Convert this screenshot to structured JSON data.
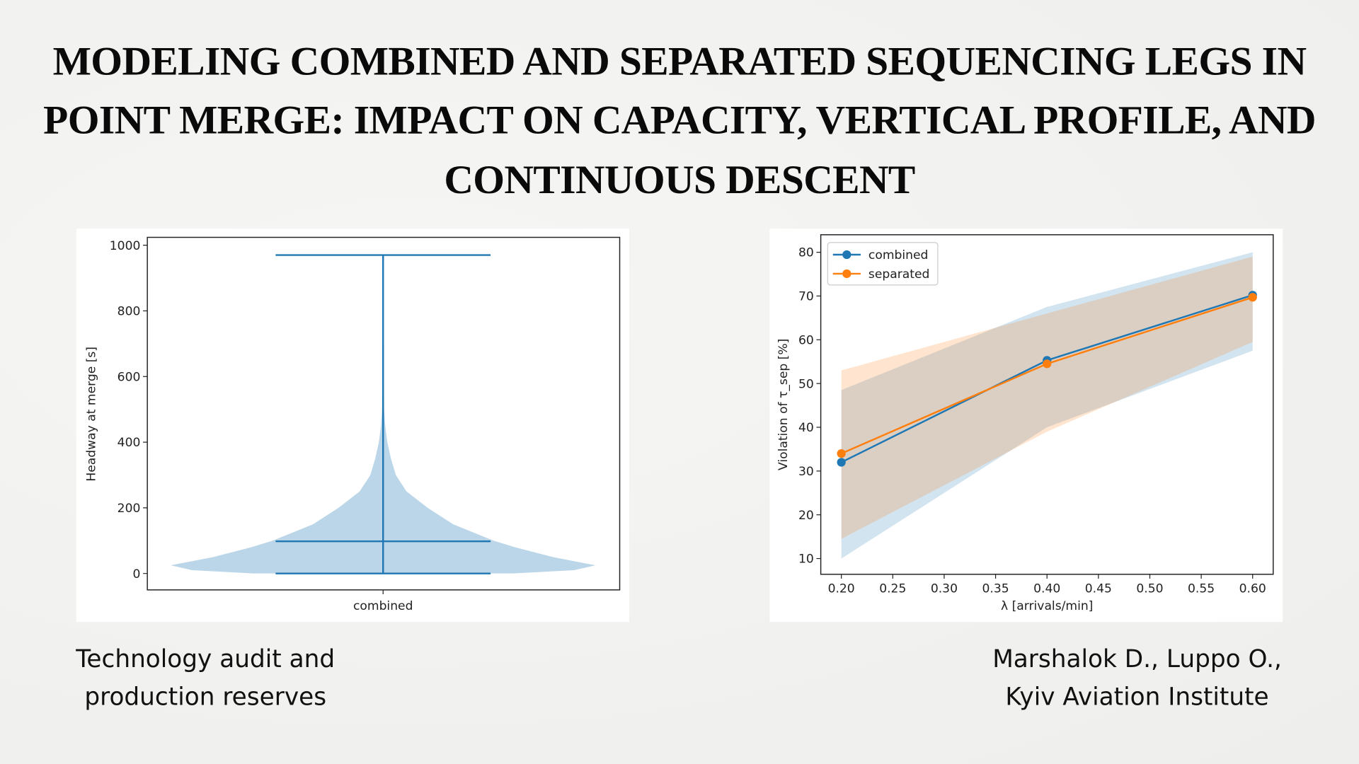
{
  "title_lines": [
    "MODELING COMBINED AND SEPARATED SEQUENCING LEGS IN",
    "POINT MERGE: IMPACT ON CAPACITY, VERTICAL PROFILE, AND",
    "CONTINUOUS DESCENT"
  ],
  "caption_left": [
    "Technology audit and",
    "production reserves"
  ],
  "caption_right": [
    "Marshalok D., Luppo O.,",
    "Kyiv Aviation Institute"
  ],
  "chart_data": [
    {
      "type": "violin",
      "categories": [
        "combined"
      ],
      "ylabel": "Headway at merge [s]",
      "xlabel": "",
      "ylim": [
        -50,
        1024
      ],
      "yticks": [
        0,
        200,
        400,
        600,
        800,
        1000
      ],
      "color": "#1f77b4",
      "min": 0,
      "max": 970,
      "center_line": 98,
      "density": [
        [
          0,
          0.61
        ],
        [
          10,
          0.9
        ],
        [
          25,
          1.0
        ],
        [
          50,
          0.8
        ],
        [
          80,
          0.62
        ],
        [
          100,
          0.52
        ],
        [
          150,
          0.33
        ],
        [
          200,
          0.21
        ],
        [
          250,
          0.11
        ],
        [
          300,
          0.06
        ],
        [
          350,
          0.037
        ],
        [
          400,
          0.02
        ],
        [
          450,
          0.01
        ],
        [
          500,
          0.005
        ],
        [
          970,
          0
        ]
      ]
    },
    {
      "type": "line",
      "xlabel": "λ [arrivals/min]",
      "ylabel": "Violation of τ_sep [%]",
      "xlim": [
        0.18,
        0.62
      ],
      "ylim": [
        6.4,
        84
      ],
      "xticks": [
        "0.20",
        "0.25",
        "0.30",
        "0.35",
        "0.40",
        "0.45",
        "0.50",
        "0.55",
        "0.60"
      ],
      "yticks": [
        10,
        20,
        30,
        40,
        50,
        60,
        70,
        80
      ],
      "legend": "top-left",
      "x": [
        0.2,
        0.4,
        0.6
      ],
      "series": [
        {
          "name": "combined",
          "color": "#1f77b4",
          "values": [
            32,
            55.3,
            70.2
          ],
          "lower": [
            10,
            40,
            57.5
          ],
          "upper": [
            48.5,
            67.5,
            80
          ]
        },
        {
          "name": "separated",
          "color": "#ff7f0e",
          "values": [
            34,
            54.5,
            69.7
          ],
          "lower": [
            14.5,
            39,
            59.5
          ],
          "upper": [
            53,
            66,
            79
          ]
        }
      ]
    }
  ]
}
